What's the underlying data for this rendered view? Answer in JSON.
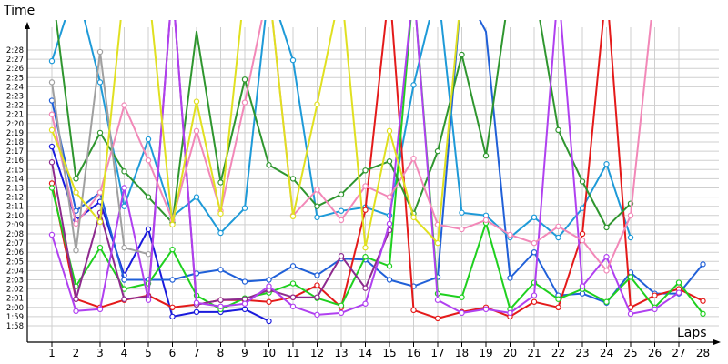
{
  "chart_data": {
    "type": "line",
    "ylabel": "Time",
    "xlabel": "Laps",
    "x": [
      1,
      2,
      3,
      4,
      5,
      6,
      7,
      8,
      9,
      10,
      11,
      12,
      13,
      14,
      15,
      16,
      17,
      18,
      19,
      20,
      21,
      22,
      23,
      24,
      25,
      26,
      27,
      28
    ],
    "x_tick_labels": [
      "1",
      "2",
      "3",
      "4",
      "5",
      "6",
      "7",
      "8",
      "9",
      "10",
      "11",
      "12",
      "13",
      "14",
      "15",
      "16",
      "17",
      "18",
      "19",
      "20",
      "21",
      "22",
      "23",
      "24",
      "25",
      "26",
      "27",
      "28"
    ],
    "y_tick_seconds": [
      118,
      119,
      120,
      121,
      122,
      123,
      124,
      125,
      126,
      127,
      128,
      129,
      130,
      131,
      132,
      133,
      134,
      135,
      136,
      137,
      138,
      139,
      140,
      141,
      142,
      143,
      144,
      145,
      146,
      147,
      148
    ],
    "y_tick_labels": [
      "1:58",
      "1:59",
      "2:00",
      "2:01",
      "2:02",
      "2:03",
      "2:04",
      "2:05",
      "2:06",
      "2:07",
      "2:08",
      "2:09",
      "2:10",
      "2:11",
      "2:12",
      "2:13",
      "2:14",
      "2:15",
      "2:16",
      "2:17",
      "2:18",
      "2:19",
      "2:20",
      "2:21",
      "2:22",
      "2:23",
      "2:24",
      "2:25",
      "2:26",
      "2:27",
      "2:28"
    ],
    "ylim_seconds": [
      118,
      148
    ],
    "grid": true,
    "legend": "none",
    "series": [
      {
        "color": "#1a1adc",
        "values": [
          137.5,
          129.5,
          131.5,
          123.5,
          128.5,
          119,
          119.5,
          119.5,
          119.8,
          118.5,
          null,
          null,
          null,
          null,
          null,
          null,
          null,
          null,
          null,
          null,
          null,
          null,
          null,
          null,
          null,
          null,
          null,
          null
        ]
      },
      {
        "color": "#2060d8",
        "values": [
          142.5,
          130.5,
          132.5,
          123,
          123,
          123,
          123.7,
          124.1,
          122.8,
          123,
          124.5,
          123.5,
          125.3,
          125.2,
          123,
          122.3,
          123.3,
          155,
          150,
          123.2,
          126,
          121.3,
          121.5,
          120.5,
          123.8,
          121.5,
          121.5,
          124.7
        ]
      },
      {
        "color": "#1e9ad8",
        "values": [
          146.8,
          155,
          144.5,
          131,
          138.3,
          129.9,
          132,
          128.1,
          130.8,
          155,
          146.9,
          129.8,
          130.5,
          130.9,
          130,
          144.2,
          155,
          130.3,
          130,
          127.6,
          129.8,
          127.6,
          130.8,
          135.6,
          127.6,
          null,
          null,
          null
        ]
      },
      {
        "color": "#e41a1a",
        "values": [
          133.5,
          120.9,
          120,
          120.8,
          121.3,
          120,
          120.3,
          120.8,
          120.8,
          120.6,
          121.1,
          122.4,
          120,
          130.6,
          155,
          119.7,
          118.8,
          119.5,
          120,
          119,
          120.6,
          120,
          128,
          155,
          120,
          121.3,
          122,
          120.7
        ]
      },
      {
        "color": "#1fd01f",
        "values": [
          133,
          122.3,
          126.5,
          122,
          122.6,
          126.3,
          121.3,
          119.8,
          121,
          121.6,
          122.6,
          121,
          120.2,
          125.5,
          124.5,
          155,
          121.5,
          121.1,
          129.2,
          119.8,
          122.7,
          120.9,
          122,
          120.6,
          123.3,
          120,
          122.7,
          119.3
        ]
      },
      {
        "color": "#2f962f",
        "values": [
          155,
          134,
          139,
          134.8,
          132,
          129.2,
          150,
          133.6,
          144.8,
          135.5,
          134,
          131,
          132.3,
          134.9,
          135.9,
          130.2,
          137,
          147.5,
          136.5,
          155,
          155,
          139.3,
          133.7,
          128.7,
          131.3,
          null,
          null,
          null
        ]
      },
      {
        "color": "#8e2a8e",
        "values": [
          135.8,
          120.9,
          130.3,
          120.9,
          121.2,
          155,
          120.3,
          120.8,
          120.9,
          121.9,
          121.1,
          121.1,
          125.6,
          122.1,
          128.4,
          null,
          null,
          null,
          null,
          null,
          null,
          null,
          null,
          null,
          null,
          null,
          null,
          null
        ]
      },
      {
        "color": "#b040f0",
        "values": [
          127.9,
          119.6,
          119.8,
          133,
          120.8,
          155,
          120.5,
          120.1,
          120.4,
          122.3,
          120.1,
          119.2,
          119.4,
          120.4,
          129.1,
          155,
          120.8,
          119.4,
          119.8,
          119.4,
          121.3,
          155,
          122.3,
          125.5,
          119.3,
          119.8,
          121.6,
          null
        ]
      },
      {
        "color": "#f288b8",
        "values": [
          141,
          129.1,
          132.5,
          142,
          136,
          129.5,
          139.2,
          130.5,
          142.3,
          155,
          130,
          132.8,
          129.5,
          133.2,
          132,
          136.2,
          129,
          128.5,
          129.5,
          127.9,
          127,
          128.8,
          127.3,
          124,
          130,
          155,
          null,
          null
        ]
      },
      {
        "color": "#a0a0a0",
        "values": [
          144.5,
          126.2,
          147.8,
          126.5,
          125.8,
          null,
          null,
          null,
          null,
          null,
          null,
          null,
          null,
          null,
          null,
          null,
          null,
          null,
          null,
          null,
          null,
          null,
          null,
          null,
          null,
          null,
          null,
          null
        ]
      },
      {
        "color": "#e0e020",
        "values": [
          139.3,
          132.5,
          129.3,
          155,
          155,
          129,
          142.4,
          130.2,
          155,
          155,
          129.9,
          142.1,
          155,
          126.5,
          139.2,
          129.8,
          127,
          155,
          null,
          null,
          null,
          null,
          null,
          null,
          null,
          null,
          null,
          null
        ]
      }
    ]
  }
}
